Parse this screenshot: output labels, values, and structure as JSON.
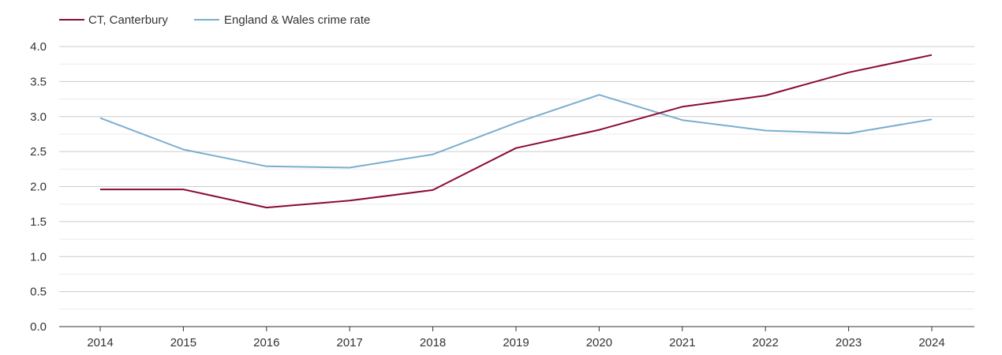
{
  "chart_data": {
    "type": "line",
    "title": "",
    "xlabel": "",
    "ylabel": "",
    "categories": [
      "2014",
      "2015",
      "2016",
      "2017",
      "2018",
      "2019",
      "2020",
      "2021",
      "2022",
      "2023",
      "2024"
    ],
    "y_ticks": [
      "0.0",
      "0.5",
      "1.0",
      "1.5",
      "2.0",
      "2.5",
      "3.0",
      "3.5",
      "4.0"
    ],
    "ylim": [
      0,
      4
    ],
    "grid": true,
    "legend_position": "top-left",
    "series": [
      {
        "name": "CT, Canterbury",
        "color": "#8b0a32",
        "values": [
          1.96,
          1.96,
          1.7,
          1.8,
          1.95,
          2.55,
          2.81,
          3.14,
          3.3,
          3.63,
          3.88
        ]
      },
      {
        "name": "England & Wales crime rate",
        "color": "#7aaece",
        "values": [
          2.98,
          2.53,
          2.29,
          2.27,
          2.46,
          2.91,
          3.31,
          2.95,
          2.8,
          2.76,
          2.96
        ]
      }
    ]
  }
}
